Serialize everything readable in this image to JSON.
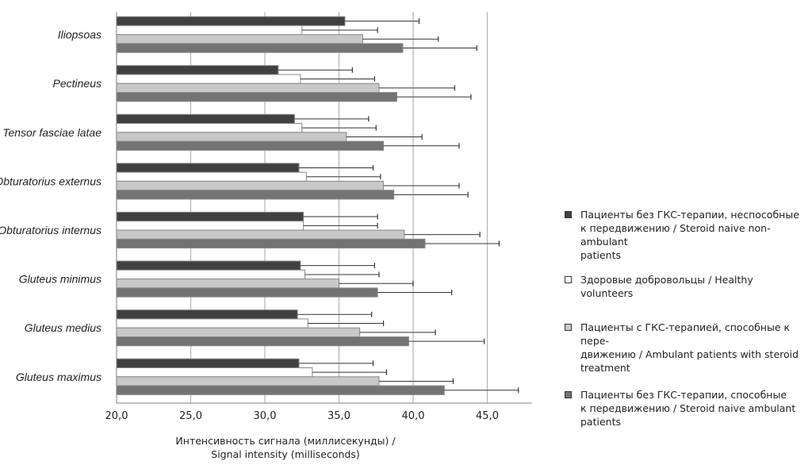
{
  "chart_data": {
    "type": "bar",
    "orientation": "horizontal",
    "categories": [
      "Iliopsoas",
      "Pectineus",
      "Tensor fasciae latae",
      "Obturatorius externus",
      "Obturatorius internus",
      "Gluteus minimus",
      "Gluteus medius",
      "Gluteus maximus"
    ],
    "series": [
      {
        "name": "Пациенты без ГКС-терапии, неспособные к передвижению / Steroid naive non-ambulant patients",
        "color": "#404040",
        "values": [
          35.4,
          30.9,
          32.0,
          32.3,
          32.6,
          32.4,
          32.2,
          32.3
        ],
        "error": [
          5.0,
          5.0,
          5.0,
          5.0,
          5.0,
          5.0,
          5.0,
          5.0
        ]
      },
      {
        "name": "Здоровые добровольцы / Healthy volunteers",
        "color": "#ffffff",
        "values": [
          32.5,
          32.4,
          32.5,
          32.8,
          32.6,
          32.7,
          32.9,
          33.2
        ],
        "error": [
          5.1,
          5.0,
          5.0,
          5.0,
          5.0,
          5.0,
          5.1,
          5.0
        ]
      },
      {
        "name": "Пациенты с ГКС-терапией, способные к пере-движению / Ambulant patients with steroid treatment",
        "color": "#c8c8c8",
        "values": [
          36.6,
          37.7,
          35.5,
          38.0,
          39.4,
          35.0,
          36.4,
          37.7
        ],
        "error": [
          5.1,
          5.1,
          5.1,
          5.1,
          5.1,
          5.0,
          5.1,
          5.0
        ]
      },
      {
        "name": "Пациенты без ГКС-терапии, способные к передвижению / Steroid naive ambulant patients",
        "color": "#737373",
        "values": [
          39.3,
          38.9,
          38.0,
          38.7,
          40.8,
          37.6,
          39.7,
          42.1
        ],
        "error": [
          5.0,
          5.0,
          5.1,
          5.0,
          5.0,
          5.0,
          5.1,
          5.0
        ]
      }
    ],
    "xlim": [
      20,
      48
    ],
    "xticks": [
      "20,0",
      "25,0",
      "30,0",
      "35,0",
      "40,0",
      "45,0"
    ],
    "xlabel": [
      "Интенсивность сигнала (миллисекунды) /",
      "Signal intensity (milliseconds)"
    ],
    "ylabel": "",
    "grid": "vertical",
    "legend_position": "right",
    "legend": [
      [
        "Пациенты без ГКС-терапии, неспособные",
        "к передвижению / Steroid naive non-ambulant",
        "patients"
      ],
      [
        "Здоровые добровольцы / Healthy volunteers"
      ],
      [
        "Пациенты с ГКС-терапией, способные к пере-",
        "движению / Ambulant patients with steroid",
        "treatment"
      ],
      [
        "Пациенты без ГКС-терапии, способные",
        "к передвижению / Steroid naive ambulant",
        "patients"
      ]
    ]
  }
}
